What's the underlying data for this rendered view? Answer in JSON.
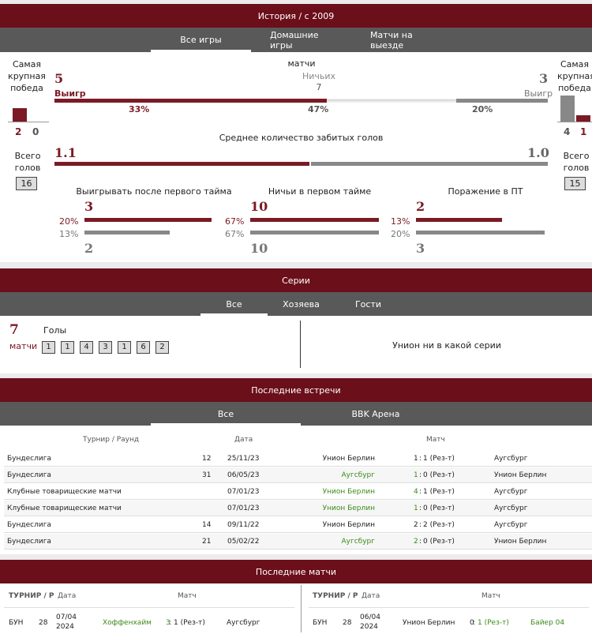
{
  "history": {
    "title": "История / с 2009",
    "tabs": [
      "Все игры",
      "Домашние игры",
      "Матчи на выезде"
    ],
    "left_biggest_label": "Самая крупная победа",
    "left_biggest_score": [
      "2",
      "0"
    ],
    "right_biggest_label": "Самая крупная победа",
    "right_biggest_score": [
      "4",
      "1"
    ],
    "matches_label": "матчи",
    "wins_value": "5",
    "wins_label": "Выигр",
    "draws_label": "Ничьих",
    "draws_value": "7",
    "losses_value": "3",
    "losses_label": "Выигр",
    "win_pct": "33%",
    "draw_pct": "47%",
    "loss_pct": "20%",
    "win_fraction": 0.33,
    "draw_fraction": 0.47,
    "loss_fraction": 0.2,
    "avg_goals_title": "Среднее количество забитых голов",
    "avg_home": "1.1",
    "avg_away": "1.0",
    "avg_home_fraction": 0.52,
    "total_goals_label": "Всего голов",
    "total_home": "16",
    "total_away": "15",
    "halftime": [
      {
        "title": "Выигрывать после первого тайма",
        "top_pct": "20%",
        "top_value": "3",
        "bottom_pct": "13%",
        "bottom_value": "2",
        "top_fraction": 0.99,
        "bottom_fraction": 0.66
      },
      {
        "title": "Ничьи в первом тайме",
        "top_pct": "67%",
        "top_value": "10",
        "bottom_pct": "67%",
        "bottom_value": "10",
        "top_fraction": 1.0,
        "bottom_fraction": 1.0
      },
      {
        "title": "Поражение в ПТ",
        "top_pct": "13%",
        "top_value": "2",
        "bottom_pct": "20%",
        "bottom_value": "3",
        "top_fraction": 0.67,
        "bottom_fraction": 1.0
      }
    ]
  },
  "series": {
    "title": "Серии",
    "tabs": [
      "Все",
      "Хозяева",
      "Гости"
    ],
    "count": "7",
    "matches_label": "матчи",
    "goals_label": "Голы",
    "goals": [
      "1",
      "1",
      "4",
      "3",
      "1",
      "6",
      "2"
    ],
    "away_text": "Унион ни в какой серии"
  },
  "recent_meetings": {
    "title": "Последние встречи",
    "tabs": [
      "Все",
      "BBK Арена"
    ],
    "headers": {
      "tournament": "Турнир / Раунд",
      "date": "Дата",
      "match": "Матч"
    },
    "rows": [
      {
        "tournament": "Бундеслига",
        "round": "12",
        "date": "25/11/23",
        "home": "Унион Берлин",
        "score_home": "1",
        "score_away": "1 (Рез-т)",
        "away": "Аугсбург",
        "home_win": false,
        "away_win": false
      },
      {
        "tournament": "Бундеслига",
        "round": "31",
        "date": "06/05/23",
        "home": "Аугсбург",
        "score_home": "1",
        "score_away": "0 (Рез-т)",
        "away": "Унион Берлин",
        "home_win": true,
        "away_win": false
      },
      {
        "tournament": "Клубные товарищеские матчи",
        "round": "",
        "date": "07/01/23",
        "home": "Унион Берлин",
        "score_home": "4",
        "score_away": "1 (Рез-т)",
        "away": "Аугсбург",
        "home_win": true,
        "away_win": false
      },
      {
        "tournament": "Клубные товарищеские матчи",
        "round": "",
        "date": "07/01/23",
        "home": "Унион Берлин",
        "score_home": "1",
        "score_away": "0 (Рез-т)",
        "away": "Аугсбург",
        "home_win": true,
        "away_win": false
      },
      {
        "tournament": "Бундеслига",
        "round": "14",
        "date": "09/11/22",
        "home": "Унион Берлин",
        "score_home": "2",
        "score_away": "2 (Рез-т)",
        "away": "Аугсбург",
        "home_win": false,
        "away_win": false
      },
      {
        "tournament": "Бундеслига",
        "round": "21",
        "date": "05/02/22",
        "home": "Аугсбург",
        "score_home": "2",
        "score_away": "0 (Рез-т)",
        "away": "Унион Берлин",
        "home_win": true,
        "away_win": false
      }
    ]
  },
  "last_matches": {
    "title": "Последние матчи",
    "headers": {
      "tournament": "ТУРНИР / Р",
      "date": "Дата",
      "match": "Матч"
    },
    "left": {
      "tournament": "БУН",
      "round": "28",
      "date": "07/04\n2024",
      "home": "Хоффенхайм",
      "score_home": "3",
      "score_away": "1 (Рез-т)",
      "away": "Аугсбург"
    },
    "right": {
      "tournament": "БУН",
      "round": "28",
      "date": "06/04\n2024",
      "home": "Унион Берлин",
      "score_home": "0",
      "score_away": "1 (Рез-т)",
      "away": "Байер 04"
    }
  },
  "colors": {
    "accent": "#6b0f1a",
    "bar_dark": "#7b1a24",
    "bar_grey": "#888888",
    "win_green": "#3a8a1a"
  }
}
